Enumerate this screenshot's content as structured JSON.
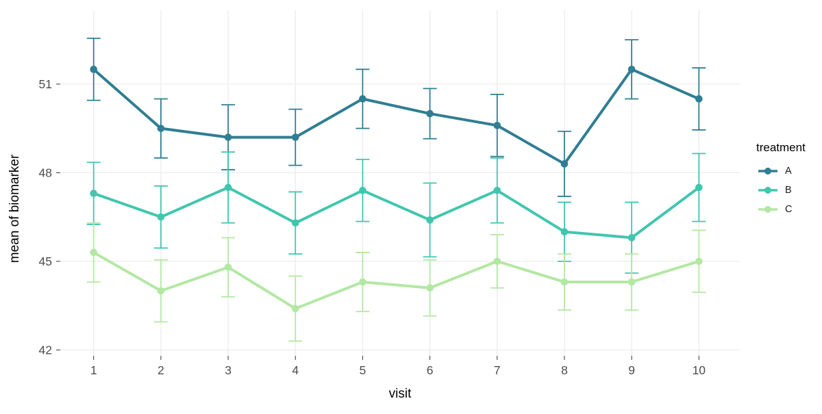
{
  "chart_data": {
    "type": "line",
    "title": "",
    "xlabel": "visit",
    "ylabel": "mean of biomarker",
    "legend_title": "treatment",
    "legend_position": "right",
    "grid": "major-only",
    "error_bars": true,
    "x": [
      1,
      2,
      3,
      4,
      5,
      6,
      7,
      8,
      9,
      10
    ],
    "x_tick_labels": [
      "1",
      "2",
      "3",
      "4",
      "5",
      "6",
      "7",
      "8",
      "9",
      "10"
    ],
    "y_ticks": [
      42,
      45,
      48,
      51
    ],
    "ylim": [
      41.8,
      53.5
    ],
    "series": [
      {
        "name": "A",
        "color": "#2F7E93",
        "values": [
          51.5,
          49.5,
          49.2,
          49.2,
          50.5,
          50.0,
          49.6,
          48.3,
          51.5,
          50.5
        ],
        "errors": [
          1.05,
          1.0,
          1.1,
          0.95,
          1.0,
          0.85,
          1.05,
          1.1,
          1.0,
          1.05
        ]
      },
      {
        "name": "B",
        "color": "#41C6AE",
        "values": [
          47.3,
          46.5,
          47.5,
          46.3,
          47.4,
          46.4,
          47.4,
          46.0,
          45.8,
          47.5
        ],
        "errors": [
          1.05,
          1.05,
          1.2,
          1.05,
          1.05,
          1.25,
          1.1,
          1.0,
          1.2,
          1.15
        ]
      },
      {
        "name": "C",
        "color": "#B3E8A3",
        "values": [
          45.3,
          44.0,
          44.8,
          43.4,
          44.3,
          44.1,
          45.0,
          44.3,
          44.3,
          45.0
        ],
        "errors": [
          1.0,
          1.05,
          1.0,
          1.1,
          1.0,
          0.95,
          0.9,
          0.95,
          0.95,
          1.05
        ]
      }
    ]
  },
  "styles": {
    "background": "#FFFFFF",
    "grid_color": "#ECECEC",
    "tick_color": "#333333",
    "tick_label_color": "#4D4D4D",
    "axis_title_color": "#000000",
    "legend_text_color": "#1A1A1A"
  }
}
